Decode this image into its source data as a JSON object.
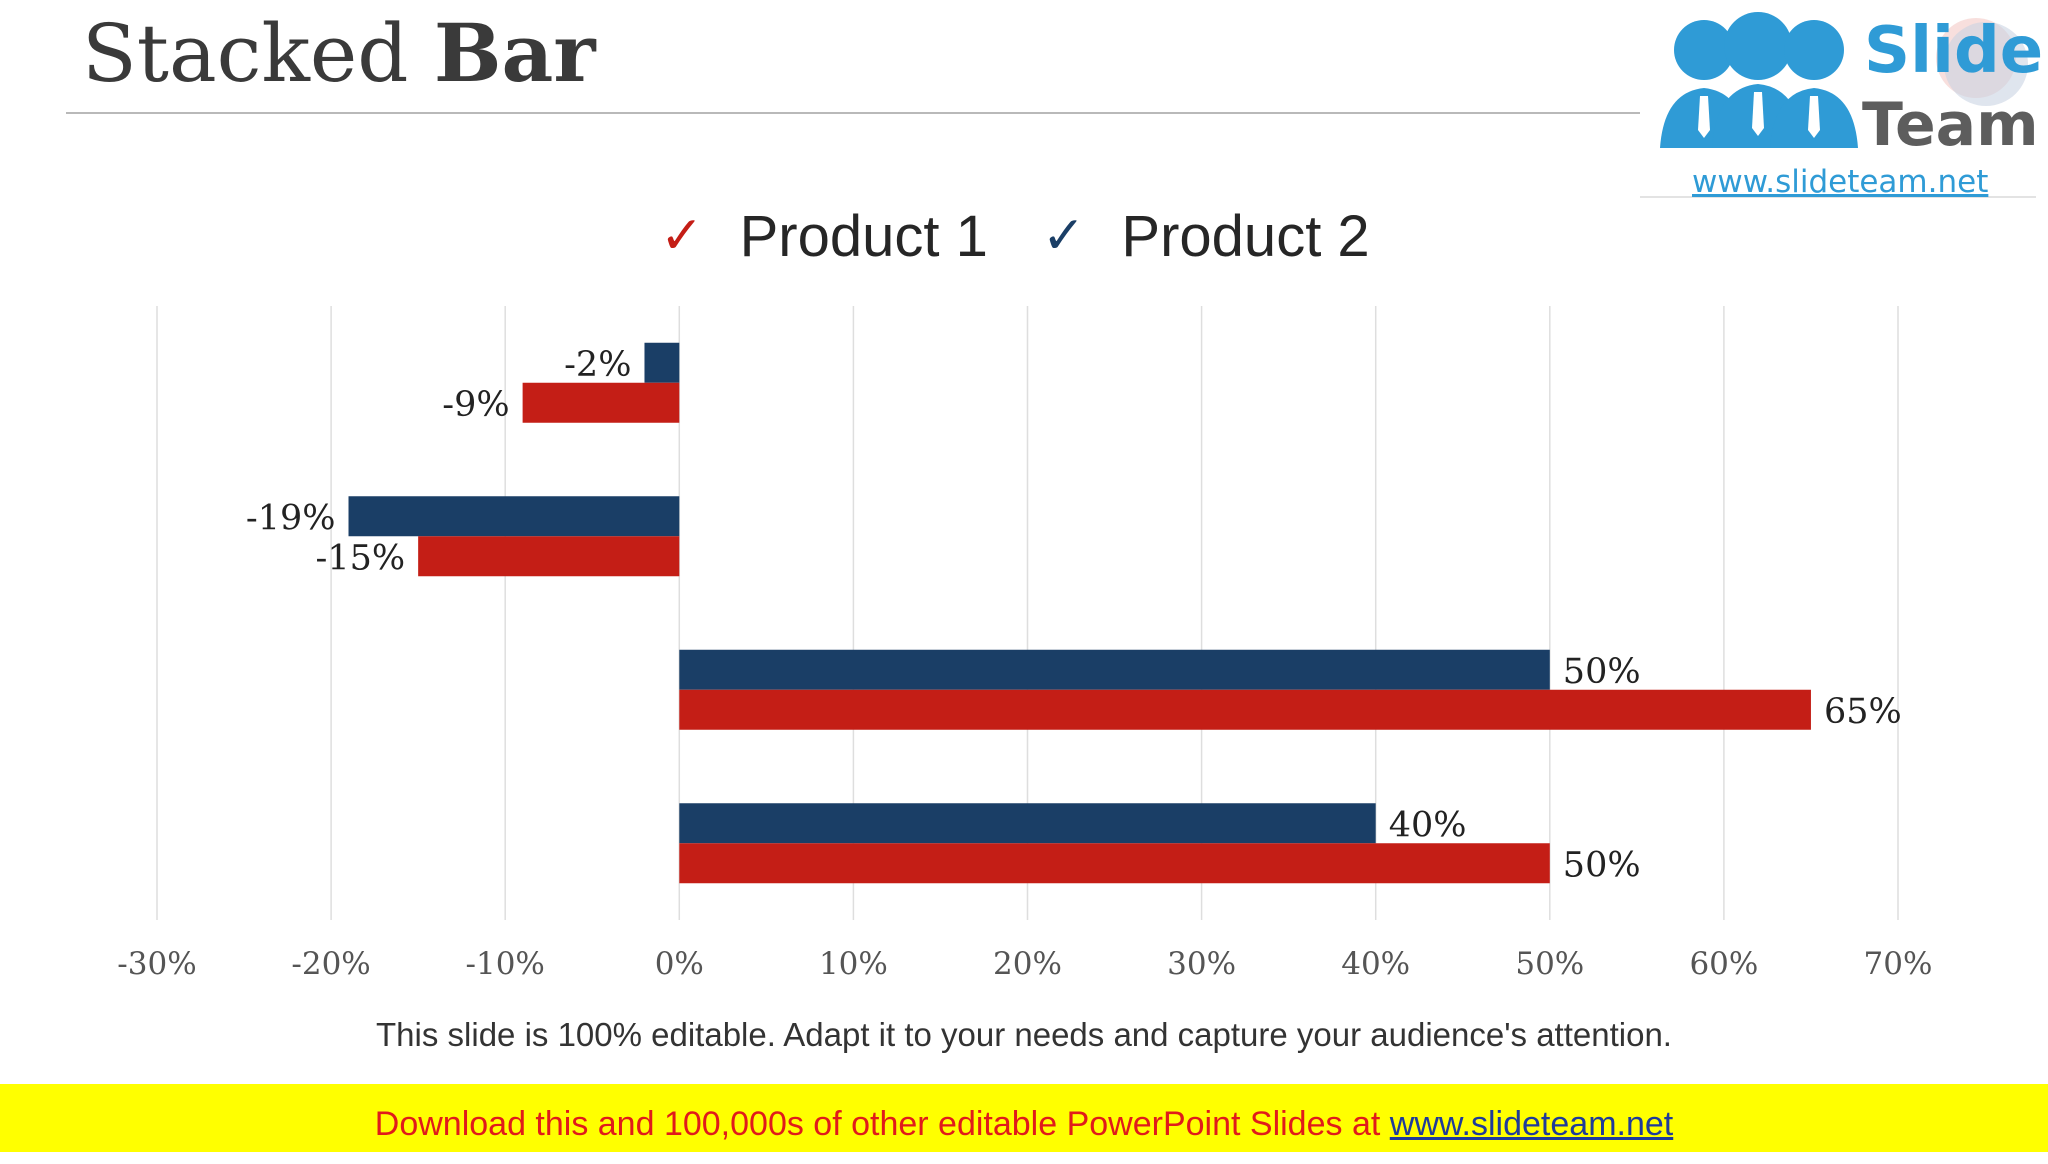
{
  "slide": {
    "title_regular": "Stacked ",
    "title_bold": "Bar",
    "caption": "This slide is 100% editable. Adapt it to your needs and capture your audience's attention.",
    "banner_text": "Download this and 100,000s of other editable PowerPoint Slides at ",
    "banner_link": "www.slideteam.net"
  },
  "logo": {
    "word1": "Slide",
    "word2": "Team",
    "url": "www.slideteam.net"
  },
  "legend": {
    "items": [
      {
        "label": "Product 1",
        "check": "✓",
        "color": "#c41e16"
      },
      {
        "label": "Product 2",
        "check": "✓",
        "color": "#1a3e66"
      }
    ]
  },
  "chart_data": {
    "type": "bar",
    "orientation": "horizontal",
    "title": "",
    "xlabel": "",
    "ylabel": "",
    "xlim": [
      -30,
      70
    ],
    "x_ticks": [
      -30,
      -20,
      -10,
      0,
      10,
      20,
      30,
      40,
      50,
      60,
      70
    ],
    "tick_labels": [
      "-30%",
      "-20%",
      "-10%",
      "0%",
      "10%",
      "20%",
      "30%",
      "40%",
      "50%",
      "60%",
      "70%"
    ],
    "grid": "vertical",
    "legend_position": "top-center",
    "category_count": 4,
    "series": [
      {
        "name": "Product 1",
        "color": "#c41e16",
        "values": [
          -9,
          -15,
          65,
          50
        ],
        "labels": [
          "-9%",
          "-15%",
          "65%",
          "50%"
        ]
      },
      {
        "name": "Product 2",
        "color": "#1a3e66",
        "values": [
          -2,
          -19,
          50,
          40
        ],
        "labels": [
          "-2%",
          "-19%",
          "50%",
          "40%"
        ]
      }
    ]
  }
}
